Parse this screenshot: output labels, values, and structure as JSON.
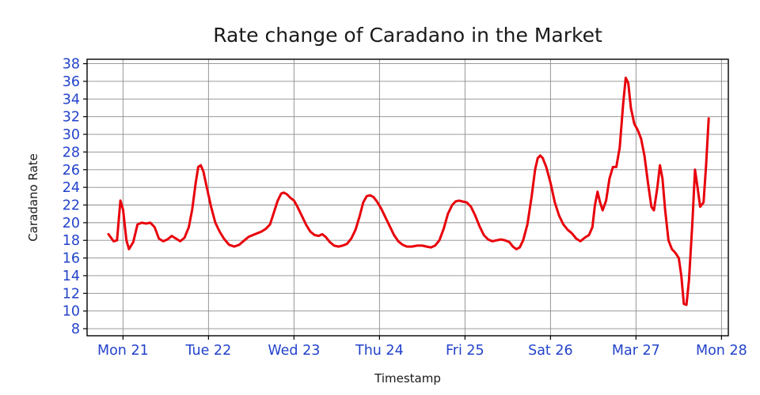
{
  "chart_data": {
    "type": "line",
    "title": "Rate change of Caradano in the Market",
    "xlabel": "Timestamp",
    "ylabel": "Caradano Rate",
    "grid": true,
    "legend": "none",
    "line_color": "#e8000b",
    "tick_label_color": "#2343cb",
    "grid_color": "#8c8c8c",
    "axis_color": "#000000",
    "xlim": [
      20.58,
      28.08
    ],
    "ylim": [
      7.2,
      38.5
    ],
    "xticks": [
      {
        "value": 21,
        "label": "Mon 21"
      },
      {
        "value": 22,
        "label": "Tue 22"
      },
      {
        "value": 23,
        "label": "Wed 23"
      },
      {
        "value": 24,
        "label": "Thu 24"
      },
      {
        "value": 25,
        "label": "Fri 25"
      },
      {
        "value": 26,
        "label": "Sat 26"
      },
      {
        "value": 27,
        "label": "Mar 27"
      },
      {
        "value": 28,
        "label": "Mon 28"
      }
    ],
    "yticks": [
      8,
      10,
      12,
      14,
      16,
      18,
      20,
      22,
      24,
      26,
      28,
      30,
      32,
      34,
      36,
      38
    ],
    "x": [
      20.83,
      20.86,
      20.89,
      20.93,
      20.97,
      21.0,
      21.04,
      21.07,
      21.12,
      21.17,
      21.22,
      21.27,
      21.32,
      21.37,
      21.42,
      21.47,
      21.52,
      21.57,
      21.62,
      21.67,
      21.72,
      21.77,
      21.81,
      21.85,
      21.88,
      21.91,
      21.94,
      21.98,
      22.03,
      22.08,
      22.13,
      22.18,
      22.24,
      22.3,
      22.36,
      22.42,
      22.47,
      22.52,
      22.57,
      22.62,
      22.67,
      22.72,
      22.76,
      22.81,
      22.85,
      22.88,
      22.92,
      22.96,
      23.0,
      23.04,
      23.09,
      23.14,
      23.19,
      23.24,
      23.29,
      23.33,
      23.37,
      23.42,
      23.47,
      23.52,
      23.57,
      23.62,
      23.67,
      23.72,
      23.77,
      23.81,
      23.85,
      23.89,
      23.93,
      23.97,
      24.02,
      24.07,
      24.12,
      24.17,
      24.22,
      24.27,
      24.32,
      24.38,
      24.44,
      24.5,
      24.55,
      24.6,
      24.65,
      24.7,
      24.75,
      24.8,
      24.85,
      24.89,
      24.93,
      24.97,
      25.02,
      25.07,
      25.12,
      25.17,
      25.22,
      25.27,
      25.32,
      25.37,
      25.42,
      25.47,
      25.52,
      25.56,
      25.6,
      25.64,
      25.68,
      25.73,
      25.78,
      25.82,
      25.85,
      25.88,
      25.91,
      25.95,
      26.0,
      26.05,
      26.1,
      26.15,
      26.2,
      26.25,
      26.3,
      26.35,
      26.4,
      26.45,
      26.49,
      26.52,
      26.55,
      26.58,
      26.61,
      26.65,
      26.69,
      26.73,
      26.77,
      26.81,
      26.85,
      26.88,
      26.91,
      26.94,
      26.98,
      27.02,
      27.06,
      27.1,
      27.14,
      27.18,
      27.21,
      27.25,
      27.28,
      27.31,
      27.34,
      27.38,
      27.42,
      27.46,
      27.5,
      27.53,
      27.56,
      27.59,
      27.62,
      27.66,
      27.69,
      27.72,
      27.75,
      27.79,
      27.82,
      27.85
    ],
    "y": [
      18.7,
      18.3,
      17.9,
      18.0,
      22.5,
      21.5,
      18.0,
      17.0,
      17.8,
      19.8,
      20.0,
      19.9,
      20.0,
      19.5,
      18.2,
      17.9,
      18.1,
      18.5,
      18.2,
      17.9,
      18.3,
      19.5,
      21.5,
      24.5,
      26.3,
      26.5,
      25.8,
      24.0,
      21.8,
      20.0,
      19.0,
      18.2,
      17.5,
      17.3,
      17.5,
      18.0,
      18.4,
      18.6,
      18.8,
      19.0,
      19.3,
      19.8,
      21.0,
      22.5,
      23.3,
      23.4,
      23.2,
      22.8,
      22.5,
      21.8,
      20.8,
      19.8,
      19.0,
      18.6,
      18.5,
      18.7,
      18.4,
      17.8,
      17.4,
      17.3,
      17.4,
      17.6,
      18.2,
      19.2,
      20.8,
      22.3,
      23.0,
      23.1,
      22.9,
      22.4,
      21.6,
      20.6,
      19.6,
      18.6,
      17.9,
      17.5,
      17.3,
      17.3,
      17.4,
      17.4,
      17.3,
      17.2,
      17.4,
      18.0,
      19.3,
      21.0,
      22.0,
      22.4,
      22.5,
      22.4,
      22.3,
      21.8,
      20.8,
      19.6,
      18.6,
      18.1,
      17.9,
      18.0,
      18.1,
      18.0,
      17.8,
      17.3,
      17.0,
      17.2,
      18.0,
      19.8,
      23.0,
      26.0,
      27.3,
      27.6,
      27.3,
      26.3,
      24.5,
      22.3,
      20.8,
      19.8,
      19.2,
      18.8,
      18.2,
      17.9,
      18.3,
      18.6,
      19.5,
      22.0,
      23.5,
      22.3,
      21.4,
      22.5,
      25.0,
      26.3,
      26.3,
      28.5,
      33.5,
      36.4,
      35.8,
      33.0,
      31.2,
      30.5,
      29.5,
      27.5,
      24.5,
      21.8,
      21.4,
      24.0,
      26.5,
      25.0,
      21.5,
      18.0,
      17.0,
      16.6,
      16.0,
      14.0,
      10.8,
      10.7,
      13.5,
      20.0,
      26.0,
      24.0,
      21.8,
      22.3,
      26.5,
      31.8
    ]
  }
}
